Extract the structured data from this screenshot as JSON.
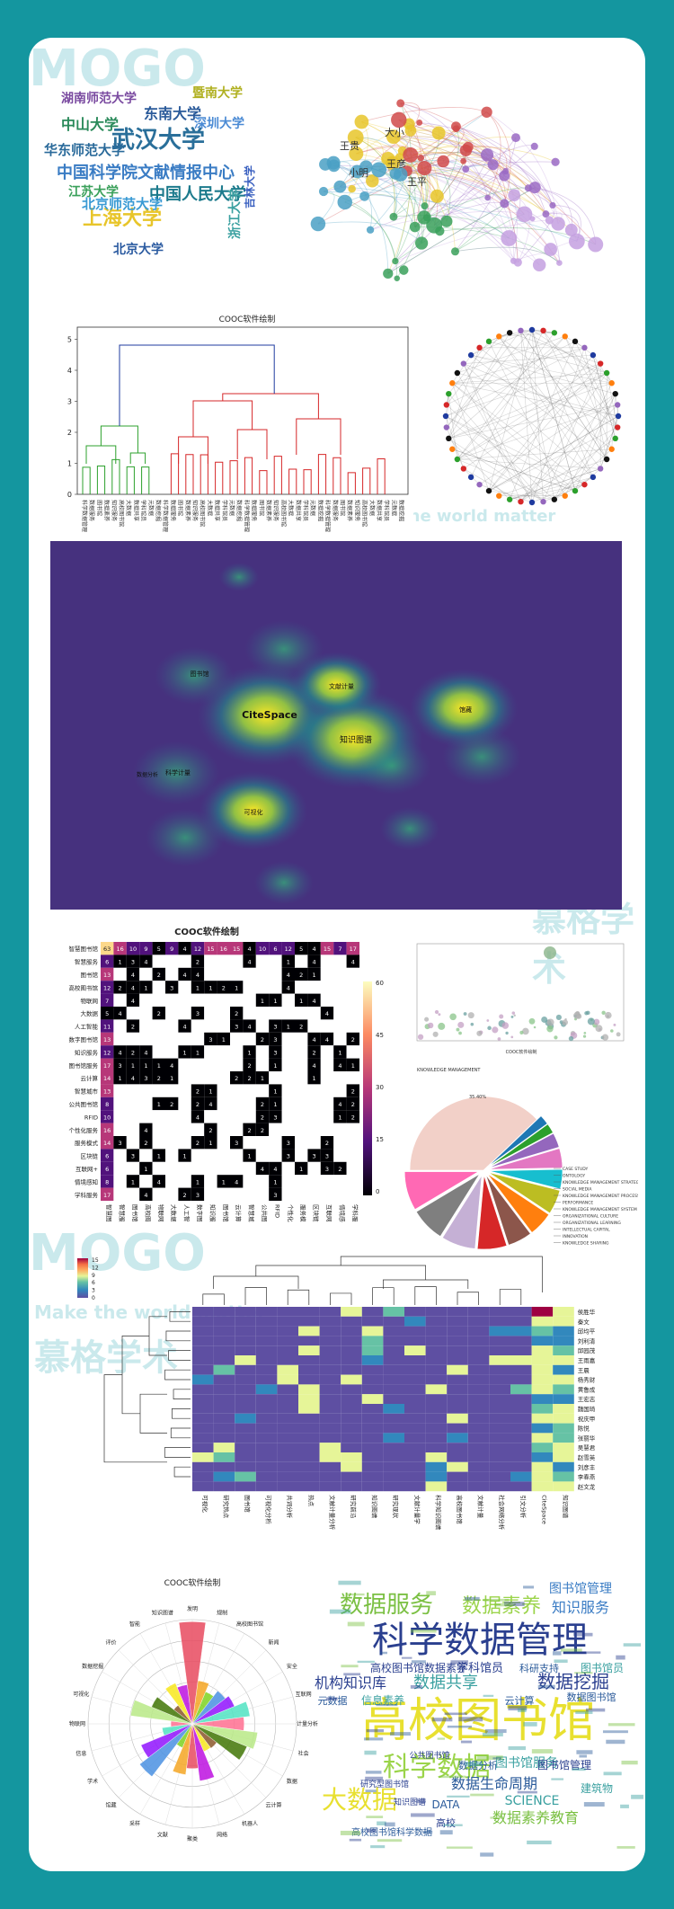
{
  "watermark": {
    "logo_text": "MOGO",
    "slogan": "Make the world matter",
    "brand_cn": "慕格学术"
  },
  "colors": {
    "frame": "#14969f",
    "card": "#ffffff",
    "heat_low": "#440154",
    "heat_high": "#fde725",
    "red": "#d62728"
  },
  "wordcloud_top": {
    "words": [
      "武汉大学",
      "中国科学院文献情报中心",
      "上海大学",
      "中国人民大学",
      "北京师范大学",
      "东南大学",
      "中山大学",
      "湖南师范大学",
      "华东师范大学",
      "江苏大学",
      "北京大学",
      "浙江大学",
      "深圳大学",
      "暨南大学",
      "吉林大学"
    ]
  },
  "network_top": {
    "labels": [
      "王贵",
      "大小",
      "王彦",
      "王平",
      "小明"
    ]
  },
  "dendrogram": {
    "title": "COOC软件绘制",
    "yticks": [
      "0",
      "1",
      "2",
      "3",
      "4",
      "5"
    ]
  },
  "density_map": {
    "labels": [
      "CiteSpace",
      "知识图谱",
      "文献计量",
      "可视化",
      "馆藏",
      "图书馆",
      "科学计量",
      "数据分析"
    ]
  },
  "cooc_matrix": {
    "title": "COOC软件绘制",
    "row_labels": [
      "智慧图书馆",
      "智慧服务",
      "图书馆",
      "高校图书馆",
      "物联网",
      "大数据",
      "人工智能",
      "数字图书馆",
      "知识服务",
      "图书馆服务",
      "云计算",
      "智慧城市",
      "公共图书馆",
      "RFID",
      "个性化服务",
      "服务模式",
      "区块链",
      "互联网+",
      "情境感知",
      "学科服务"
    ],
    "col_labels": [
      "智慧图书馆",
      "智慧服务",
      "图书馆",
      "高校图书馆",
      "物联网",
      "大数据",
      "人工智能",
      "数字图书馆",
      "知识服务",
      "图书馆服务",
      "云计算",
      "智慧城市",
      "公共图书馆",
      "RFID",
      "个性化服务",
      "服务模式",
      "区块链",
      "互联网+",
      "情境感知",
      "学科服务"
    ],
    "colorbar_ticks": [
      "60",
      "45",
      "30",
      "15",
      "0"
    ]
  },
  "scatter_small": {
    "title": "COOC软件绘制"
  },
  "pie": {
    "title": "KNOWLEDGE MANAGEMENT",
    "top_label": "35.40%",
    "legend": [
      "CASE STUDY",
      "ONTOLOGY",
      "KNOWLEDGE MANAGEMENT STRATEGY",
      "SOCIAL MEDIA",
      "KNOWLEDGE MANAGEMENT PROCESSES",
      "PERFORMANCE",
      "KNOWLEDGE MANAGEMENT SYSTEM",
      "ORGANIZATIONAL CULTURE",
      "ORGANIZATIONAL LEARNING",
      "INTELLECTUAL CAPITAL",
      "INNOVATION",
      "KNOWLEDGE SHARING"
    ]
  },
  "clustermap": {
    "colorbar_ticks": [
      "15",
      "12",
      "9",
      "6",
      "3",
      "0"
    ],
    "row_labels": [
      "侯胜华",
      "秦文",
      "邱均平",
      "刘利清",
      "邱园茂",
      "王雨嘉",
      "王晨",
      "杨秀财",
      "黄鲁成",
      "王宏志",
      "魏国琦",
      "祝庆甲",
      "陈悦",
      "张丽华",
      "吴慧君",
      "赵雪英",
      "刘彦丰",
      "李春燕",
      "赵文龙"
    ],
    "col_labels": [
      "可视化",
      "研究热点",
      "图书馆",
      "可视化分析",
      "共词分析",
      "热点",
      "文献计量分析",
      "研究前沿",
      "知识图谱",
      "研究现状",
      "文献计量学",
      "科学知识图谱",
      "高校图书馆",
      "文献计量",
      "社会网络分析",
      "引文分析",
      "CiteSpace",
      "知识图谱"
    ]
  },
  "polar_bar": {
    "title": "COOC软件绘制",
    "labels": [
      "发明",
      "规制",
      "高校图书馆",
      "新闻",
      "安全",
      "互联网",
      "计量分析",
      "社会",
      "数据",
      "云计算",
      "机器人",
      "网络",
      "聚类",
      "文献",
      "采样",
      "馆藏",
      "学术",
      "信息",
      "物联网",
      "可视化",
      "数据挖掘",
      "评价",
      "智能",
      "知识图谱"
    ]
  },
  "wordcloud_bottom": {
    "words": [
      "科学数据管理",
      "高校图书馆",
      "数据服务",
      "数据素养",
      "知识服务",
      "图书馆管理",
      "科学数据",
      "大数据",
      "数据共享",
      "数据挖掘",
      "机构知识库",
      "高校图书馆数据素养",
      "学科馆员",
      "科研支持",
      "图书馆员",
      "信息素养",
      "元数据",
      "云计算",
      "数据生命周期",
      "数据分析",
      "图书馆服务",
      "SCIENCE",
      "DATA",
      "数据素养教育",
      "图书馆管理",
      "建筑物",
      "研究型图书馆",
      "高校",
      "知识图谱",
      "公共图书馆",
      "高校图书馆科学数据",
      "数据图书馆"
    ]
  }
}
